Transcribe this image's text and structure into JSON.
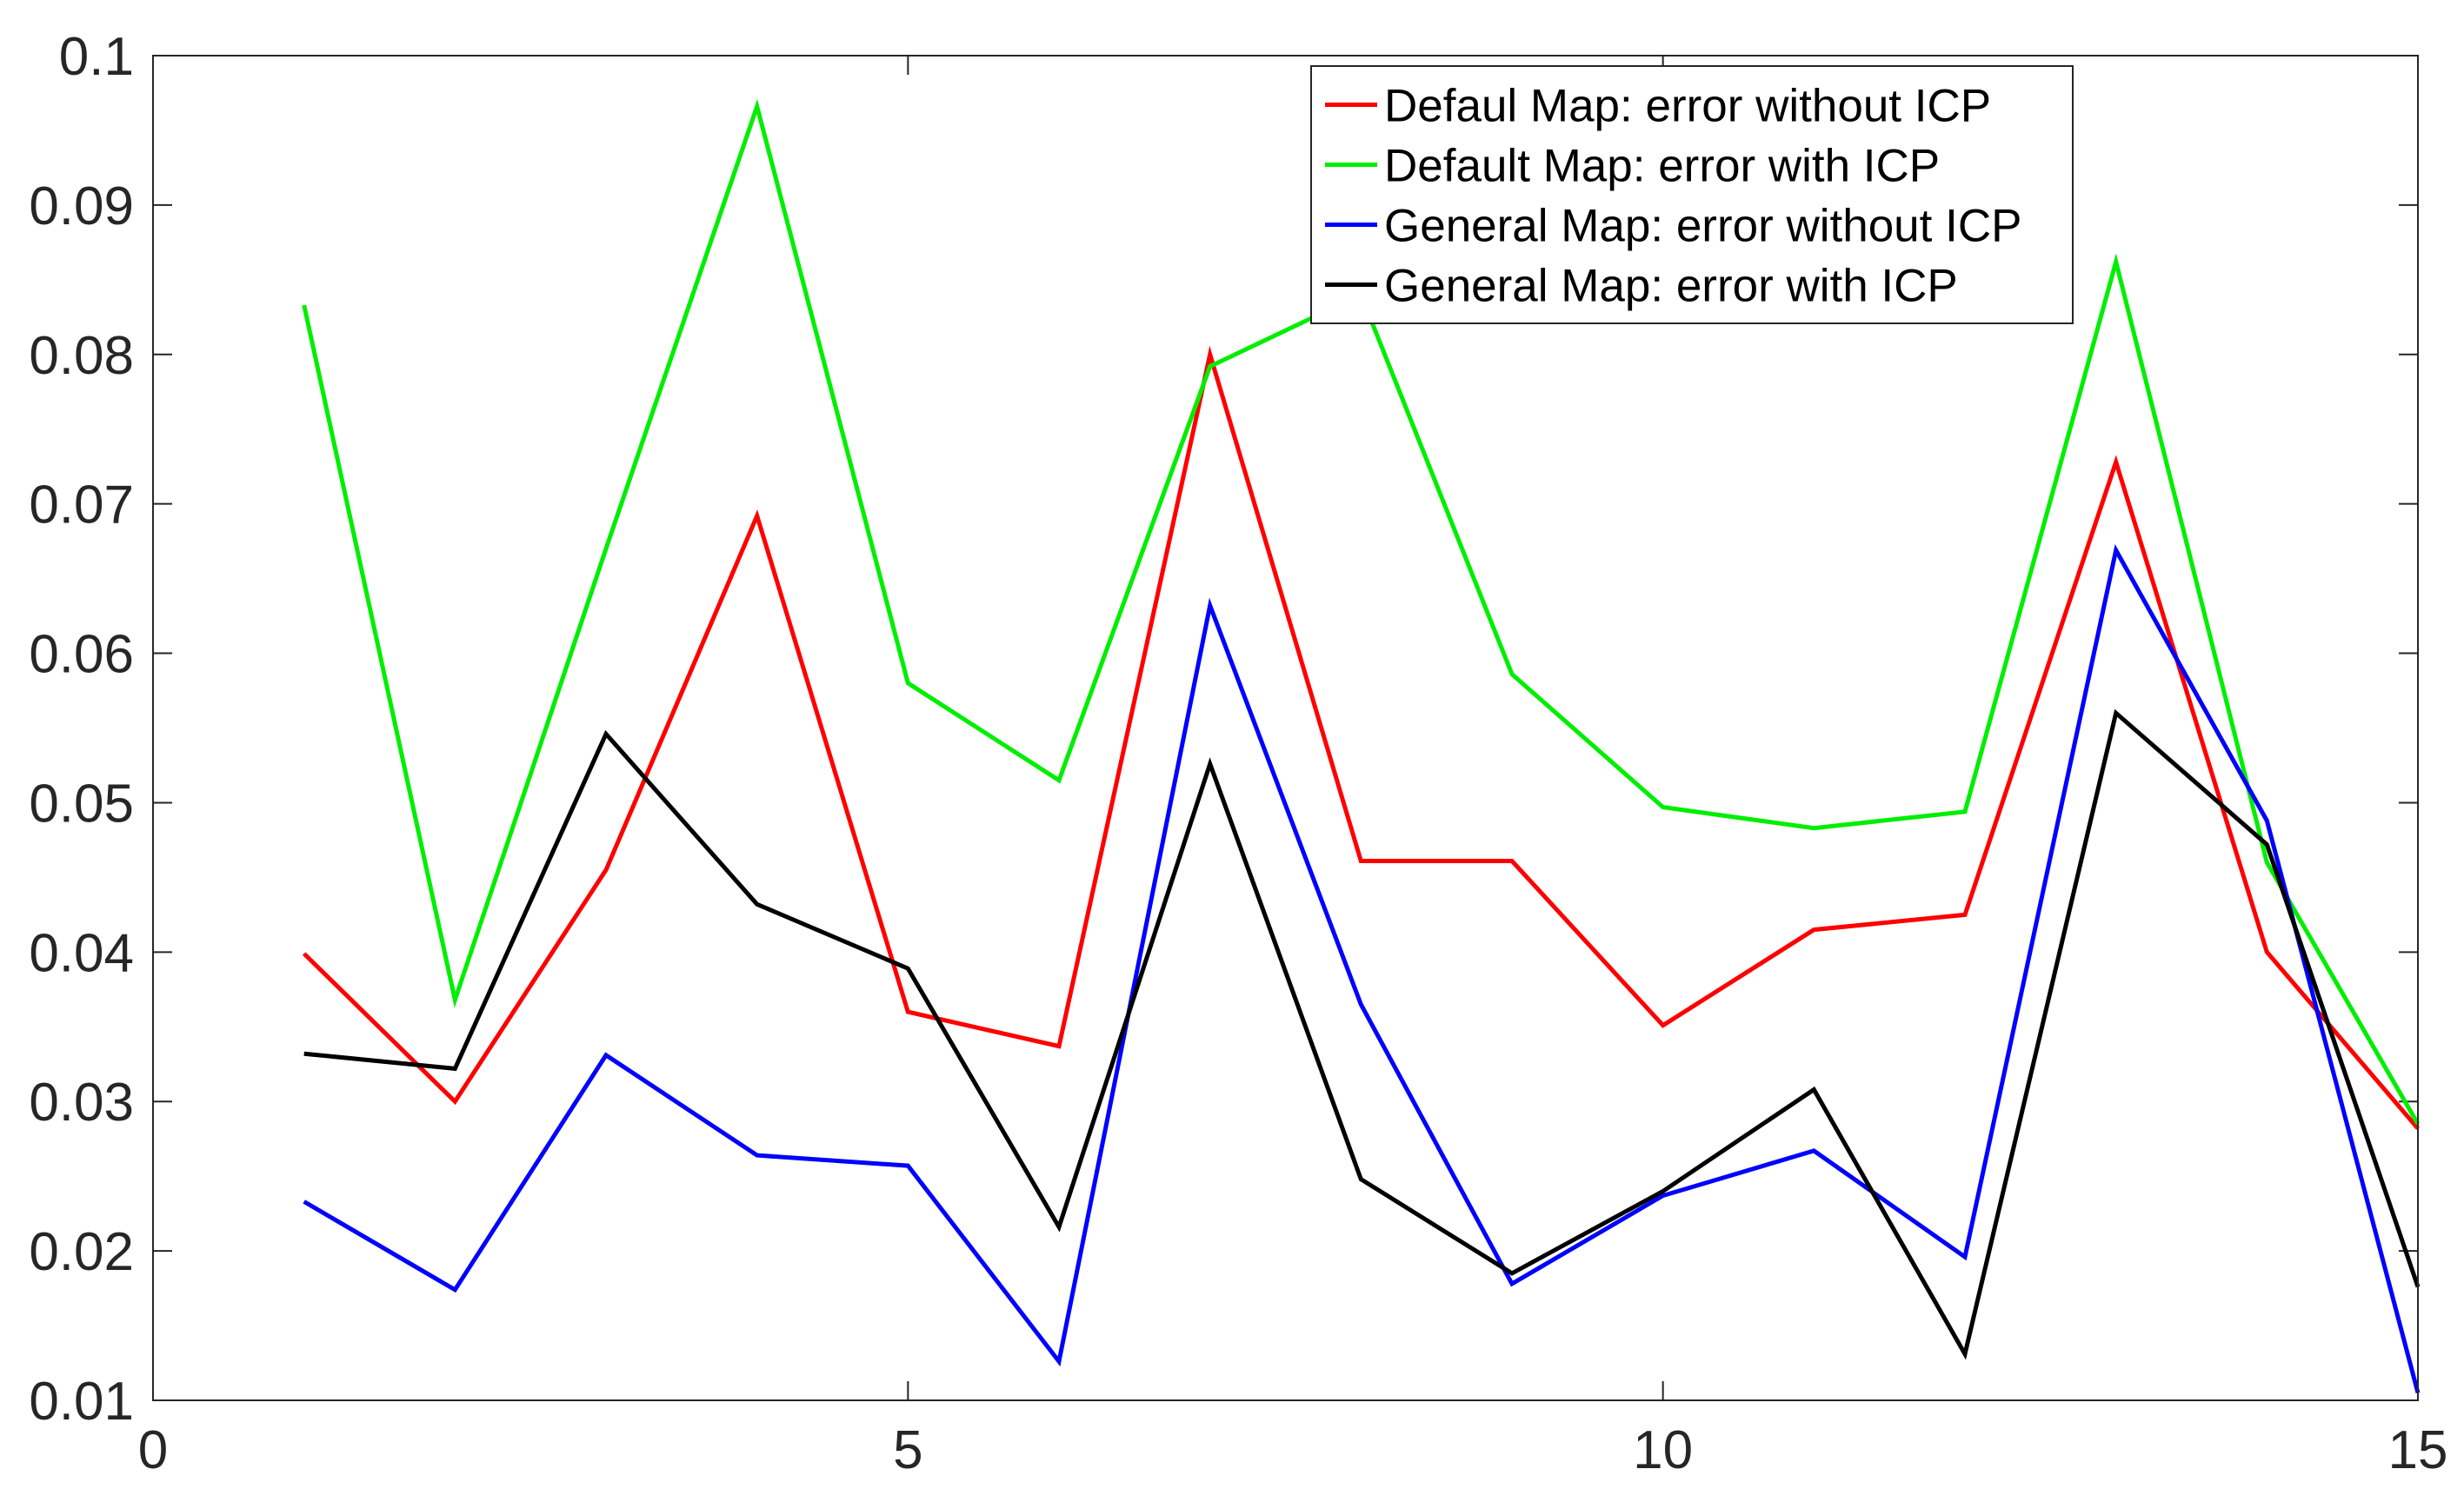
{
  "chart_data": {
    "type": "line",
    "title": "",
    "xlabel": "",
    "ylabel": "",
    "xlim": [
      0,
      15
    ],
    "ylim": [
      0.01,
      0.1
    ],
    "x_ticks": [
      0,
      5,
      10,
      15
    ],
    "x_tick_labels": [
      "0",
      "5",
      "10",
      "15"
    ],
    "y_ticks": [
      0.01,
      0.02,
      0.03,
      0.04,
      0.05,
      0.06,
      0.07,
      0.08,
      0.09,
      0.1
    ],
    "y_tick_labels": [
      "0.01",
      "0.02",
      "0.03",
      "0.04",
      "0.05",
      "0.06",
      "0.07",
      "0.08",
      "0.09",
      "0.1"
    ],
    "grid": false,
    "legend_position": "top-right",
    "x": [
      1,
      2,
      3,
      4,
      5,
      6,
      7,
      8,
      9,
      10,
      11,
      12,
      13,
      14,
      15
    ],
    "series": [
      {
        "name": "Defaul Map: error without ICP",
        "color": "#ff0000",
        "values": [
          0.0399,
          0.03,
          0.0455,
          0.0692,
          0.036,
          0.0337,
          0.08,
          0.0461,
          0.0461,
          0.0351,
          0.0415,
          0.0425,
          0.0728,
          0.04,
          0.0282
        ]
      },
      {
        "name": "Default Map: error with ICP",
        "color": "#00ee00",
        "values": [
          0.0833,
          0.0368,
          0.067,
          0.0966,
          0.058,
          0.0515,
          0.0792,
          0.084,
          0.0586,
          0.0497,
          0.0483,
          0.0494,
          0.0862,
          0.046,
          0.0285
        ]
      },
      {
        "name": "General Map: error without ICP",
        "color": "#0000ff",
        "values": [
          0.0233,
          0.0174,
          0.0331,
          0.0264,
          0.0257,
          0.0126,
          0.0632,
          0.0365,
          0.0178,
          0.0237,
          0.0267,
          0.0196,
          0.0669,
          0.0488,
          0.0105
        ]
      },
      {
        "name": "General Map: error with ICP",
        "color": "#000000",
        "values": [
          0.0332,
          0.0322,
          0.0546,
          0.0432,
          0.0389,
          0.0216,
          0.0526,
          0.0248,
          0.0185,
          0.024,
          0.0308,
          0.0131,
          0.056,
          0.0472,
          0.0176
        ]
      }
    ]
  }
}
